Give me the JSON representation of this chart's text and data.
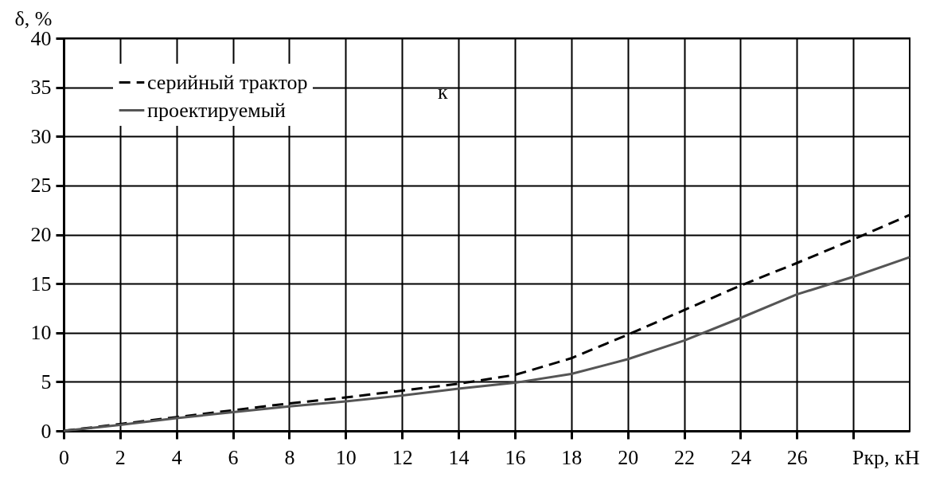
{
  "chart_data": {
    "type": "line",
    "xlabel": "Pкр, кН",
    "ylabel": "δ, %",
    "x": [
      0,
      2,
      4,
      6,
      8,
      10,
      12,
      14,
      16,
      18,
      20,
      22,
      24,
      26,
      28,
      30
    ],
    "series": [
      {
        "name": "серийный трактор",
        "color": "#000000",
        "line_style": "dashed",
        "values": [
          0,
          0.7,
          1.4,
          2.1,
          2.8,
          3.4,
          4.1,
          4.8,
          5.7,
          7.4,
          9.8,
          12.3,
          14.8,
          17.1,
          19.5,
          22.0
        ]
      },
      {
        "name": "проектируемый",
        "color": "#555555",
        "line_style": "solid",
        "values": [
          0,
          0.6,
          1.3,
          1.9,
          2.5,
          3.0,
          3.6,
          4.3,
          4.9,
          5.8,
          7.3,
          9.2,
          11.5,
          13.9,
          15.7,
          17.7
        ]
      }
    ],
    "xlim": [
      0,
      30
    ],
    "xticks": [
      0,
      2,
      4,
      6,
      8,
      10,
      12,
      14,
      16,
      18,
      20,
      22,
      24,
      26,
      {
        "value": 28,
        "label": null
      }
    ],
    "ylim": [
      0,
      40
    ],
    "yticks": [
      0,
      5,
      10,
      15,
      20,
      25,
      30,
      35,
      40
    ],
    "grid": true,
    "legend": "top left",
    "annotations": [
      "к"
    ]
  }
}
